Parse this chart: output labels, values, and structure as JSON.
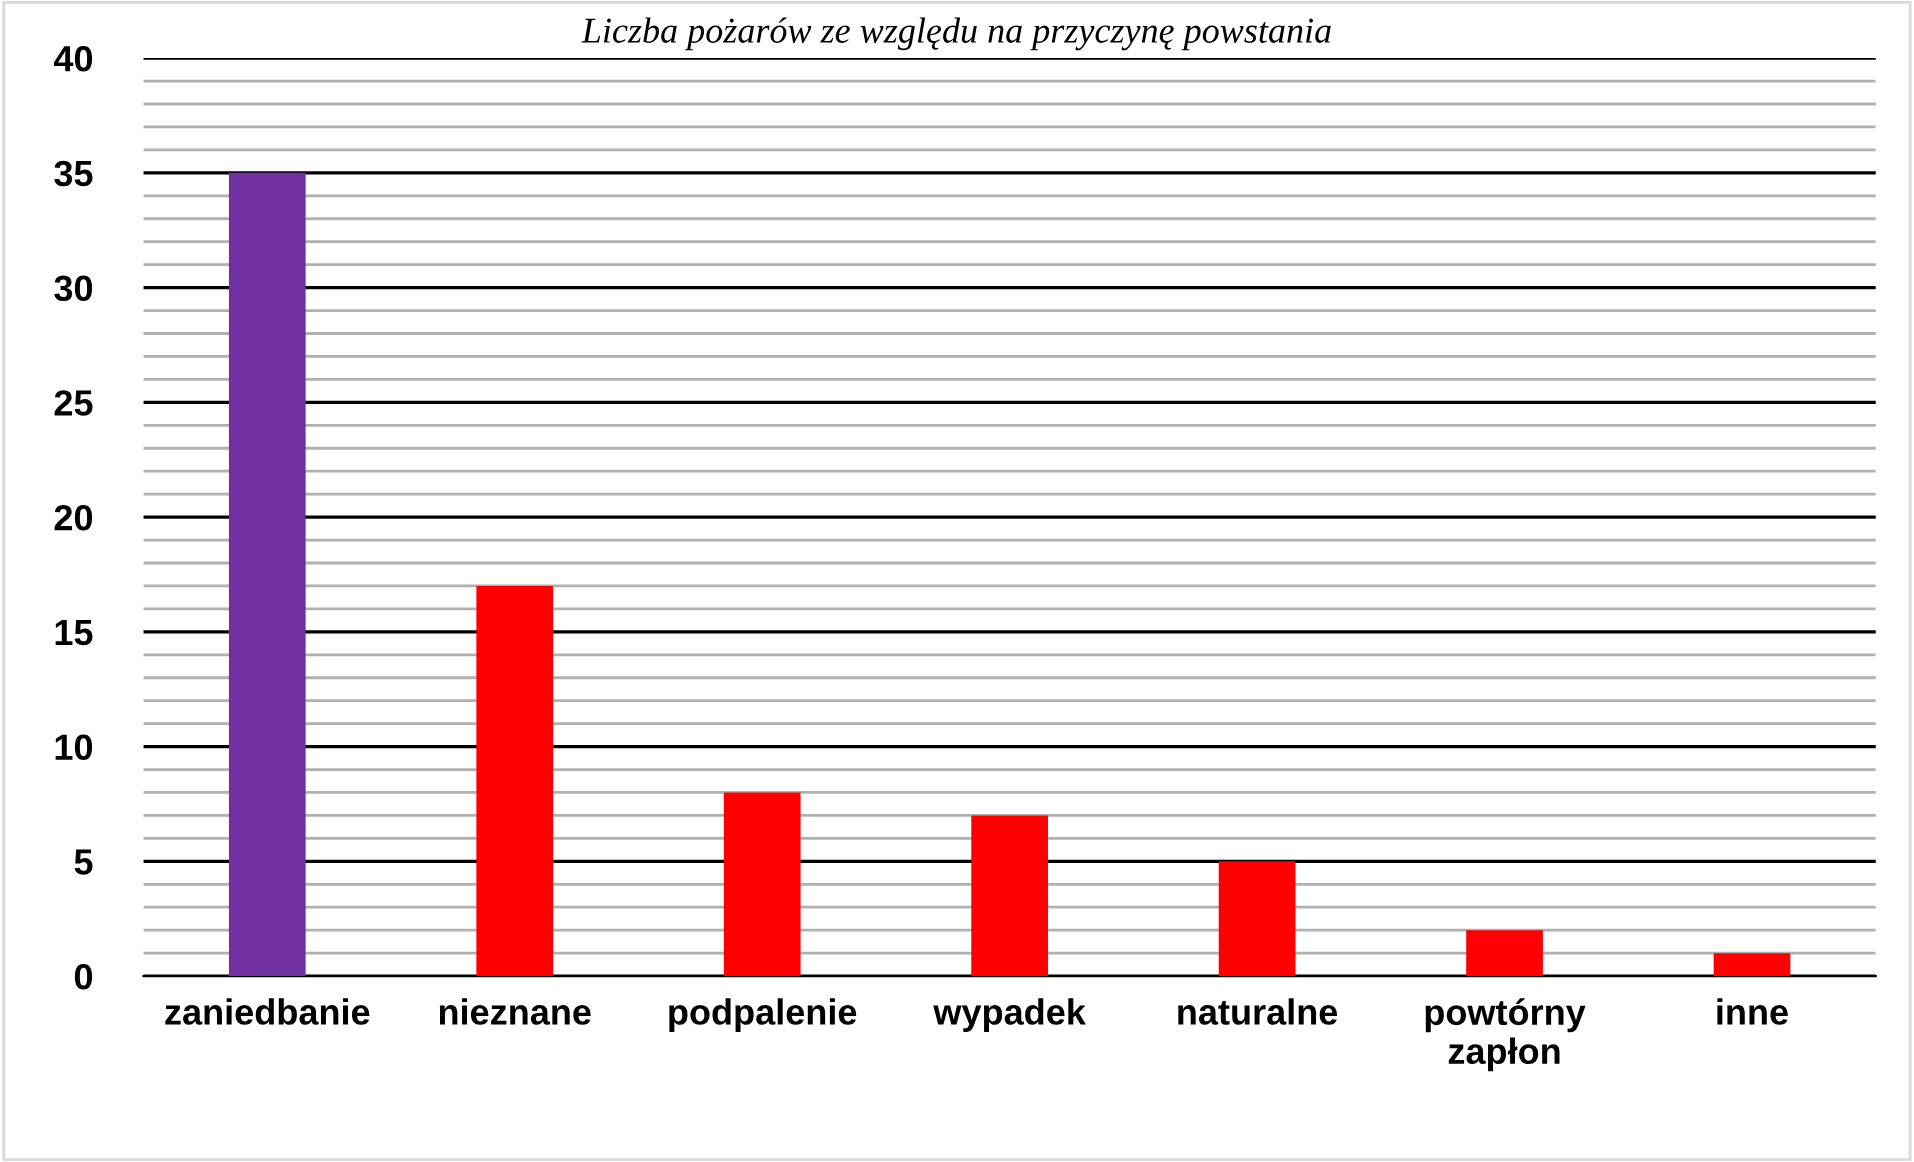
{
  "chart_data": {
    "type": "bar",
    "title": "Liczba pożarów ze względu na przyczynę powstania",
    "categories": [
      "zaniedbanie",
      "nieznane",
      "podpalenie",
      "wypadek",
      "naturalne",
      "powtórny\nzapłon",
      "inne"
    ],
    "values": [
      35,
      17,
      8,
      7,
      5,
      2,
      1
    ],
    "colors": [
      "#7030a0",
      "#ff0000",
      "#ff0000",
      "#ff0000",
      "#ff0000",
      "#ff0000",
      "#ff0000"
    ],
    "ylim": [
      0,
      40
    ],
    "yticks": [
      0,
      {
        "value": 1,
        "label": null
      },
      {
        "value": 2,
        "label": null
      },
      {
        "value": 3,
        "label": null
      },
      {
        "value": 4,
        "label": null
      },
      5,
      {
        "value": 6,
        "label": null
      },
      {
        "value": 7,
        "label": null
      },
      {
        "value": 8,
        "label": null
      },
      {
        "value": 9,
        "label": null
      },
      10,
      {
        "value": 11,
        "label": null
      },
      {
        "value": 12,
        "label": null
      },
      {
        "value": 13,
        "label": null
      },
      {
        "value": 14,
        "label": null
      },
      15,
      {
        "value": 16,
        "label": null
      },
      {
        "value": 17,
        "label": null
      },
      {
        "value": 18,
        "label": null
      },
      {
        "value": 19,
        "label": null
      },
      20,
      {
        "value": 21,
        "label": null
      },
      {
        "value": 22,
        "label": null
      },
      {
        "value": 23,
        "label": null
      },
      {
        "value": 24,
        "label": null
      },
      25,
      {
        "value": 26,
        "label": null
      },
      {
        "value": 27,
        "label": null
      },
      {
        "value": 28,
        "label": null
      },
      {
        "value": 29,
        "label": null
      },
      30,
      {
        "value": 31,
        "label": null
      },
      {
        "value": 32,
        "label": null
      },
      {
        "value": 33,
        "label": null
      },
      {
        "value": 34,
        "label": null
      },
      35,
      {
        "value": 36,
        "label": null
      },
      {
        "value": 37,
        "label": null
      },
      {
        "value": 38,
        "label": null
      },
      {
        "value": 39,
        "label": null
      },
      40
    ],
    "grid": "y"
  }
}
